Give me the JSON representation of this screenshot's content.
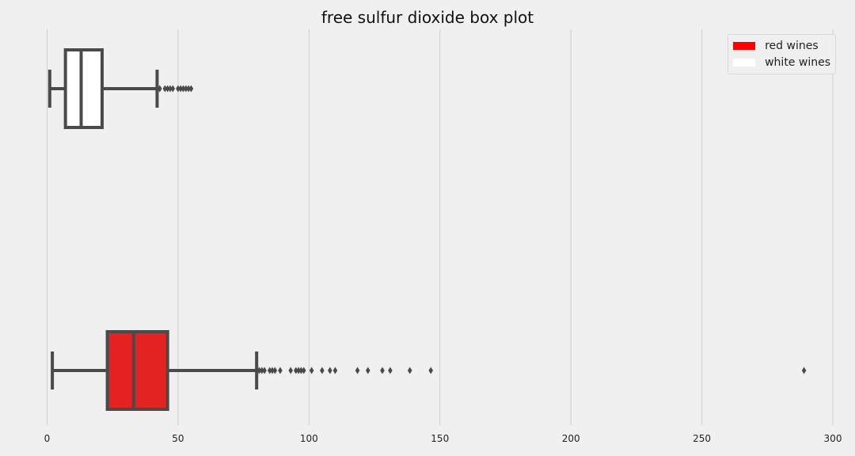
{
  "chart_data": {
    "type": "boxplot",
    "orientation": "horizontal",
    "title": "free sulfur dioxide box plot",
    "xlabel": "",
    "ylabel": "",
    "xlim": [
      0,
      300
    ],
    "x_ticks": [
      0,
      50,
      100,
      150,
      200,
      250,
      300
    ],
    "grid": "vertical",
    "legend_position": "top-right",
    "series": [
      {
        "name": "white wines",
        "color": "#ffffff",
        "whisker_low": 1,
        "q1": 7,
        "median": 13,
        "q3": 21,
        "whisker_high": 42,
        "outliers": [
          43,
          45,
          46,
          47,
          48,
          50,
          51,
          52,
          53,
          54,
          55
        ]
      },
      {
        "name": "red wines",
        "color": "#e32222",
        "whisker_low": 2,
        "q1": 23,
        "median": 33,
        "q3": 46,
        "whisker_high": 80,
        "outliers": [
          81,
          82,
          83,
          85,
          86,
          87,
          89,
          93,
          95,
          96,
          97,
          98,
          101,
          105,
          108,
          110,
          118.5,
          122.5,
          128,
          131,
          138.5,
          146.5,
          289
        ]
      }
    ],
    "legend": [
      {
        "label": "red wines",
        "color": "#ff0000"
      },
      {
        "label": "white wines",
        "color": "#ffffff"
      }
    ]
  }
}
